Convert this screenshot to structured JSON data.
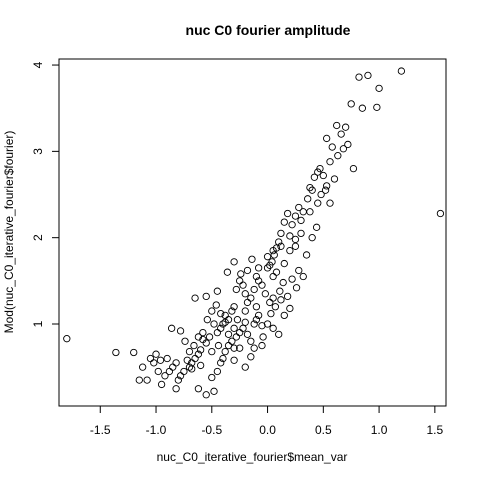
{
  "chart_data": {
    "type": "scatter",
    "title": "nuc C0 fourier amplitude",
    "xlabel": "nuc_C0_iterative_fourier$mean_var",
    "ylabel": "Mod(nuc_C0_iterative_fourier$fourier)",
    "xlim": [
      -1.87,
      1.6
    ],
    "ylim": [
      0.05,
      4.07
    ],
    "xticks": [
      -1.5,
      -1.0,
      -0.5,
      0.0,
      0.5,
      1.0,
      1.5
    ],
    "xtick_labels": [
      "-1.5",
      "-1.0",
      "-0.5",
      "0.0",
      "0.5",
      "1.0",
      "1.5"
    ],
    "yticks": [
      1,
      2,
      3,
      4
    ],
    "ytick_labels": [
      "1",
      "2",
      "3",
      "4"
    ],
    "grid": false,
    "legend": "none",
    "marker": "open-circle",
    "color": "#000000",
    "points": [
      [
        -1.8,
        0.83
      ],
      [
        -1.36,
        0.67
      ],
      [
        -1.2,
        0.67
      ],
      [
        1.55,
        2.28
      ],
      [
        1.2,
        3.93
      ],
      [
        1.0,
        3.73
      ],
      [
        0.9,
        3.88
      ],
      [
        0.82,
        3.86
      ],
      [
        0.85,
        3.5
      ],
      [
        0.98,
        3.51
      ],
      [
        0.75,
        3.55
      ],
      [
        0.62,
        3.3
      ],
      [
        0.7,
        3.28
      ],
      [
        0.66,
        3.2
      ],
      [
        0.72,
        3.08
      ],
      [
        0.68,
        3.03
      ],
      [
        0.63,
        2.95
      ],
      [
        0.58,
        3.05
      ],
      [
        0.53,
        3.15
      ],
      [
        0.56,
        2.88
      ],
      [
        0.5,
        2.72
      ],
      [
        0.47,
        2.8
      ],
      [
        0.45,
        2.76
      ],
      [
        0.42,
        2.7
      ],
      [
        0.53,
        2.6
      ],
      [
        0.48,
        2.5
      ],
      [
        0.4,
        2.55
      ],
      [
        0.36,
        2.45
      ],
      [
        0.38,
        2.58
      ],
      [
        0.77,
        2.8
      ],
      [
        0.56,
        2.4
      ],
      [
        0.32,
        2.3
      ],
      [
        0.28,
        2.35
      ],
      [
        0.25,
        2.25
      ],
      [
        0.3,
        2.2
      ],
      [
        0.22,
        2.15
      ],
      [
        0.2,
        2.02
      ],
      [
        0.18,
        2.28
      ],
      [
        0.15,
        2.18
      ],
      [
        0.12,
        2.05
      ],
      [
        0.1,
        1.95
      ],
      [
        0.08,
        1.88
      ],
      [
        0.06,
        1.8
      ],
      [
        0.04,
        1.72
      ],
      [
        0.02,
        1.68
      ],
      [
        0.0,
        1.65
      ],
      [
        0.05,
        1.55
      ],
      [
        0.08,
        1.6
      ],
      [
        0.15,
        1.7
      ],
      [
        0.2,
        1.85
      ],
      [
        0.25,
        1.9
      ],
      [
        0.14,
        1.48
      ],
      [
        0.11,
        1.38
      ],
      [
        0.05,
        1.3
      ],
      [
        0.02,
        1.25
      ],
      [
        -0.02,
        1.35
      ],
      [
        -0.05,
        1.45
      ],
      [
        -0.08,
        1.5
      ],
      [
        -0.1,
        1.55
      ],
      [
        -0.12,
        1.4
      ],
      [
        -0.15,
        1.3
      ],
      [
        -0.18,
        1.25
      ],
      [
        -0.2,
        1.35
      ],
      [
        -0.22,
        1.45
      ],
      [
        -0.25,
        1.5
      ],
      [
        -0.28,
        1.4
      ],
      [
        -0.3,
        1.2
      ],
      [
        -0.32,
        1.15
      ],
      [
        -0.35,
        1.05
      ],
      [
        -0.38,
        1.1
      ],
      [
        -0.4,
        1.0
      ],
      [
        -0.42,
        0.95
      ],
      [
        -0.45,
        0.9
      ],
      [
        -0.48,
        1.0
      ],
      [
        -0.5,
        1.15
      ],
      [
        -0.52,
        0.85
      ],
      [
        -0.55,
        0.78
      ],
      [
        -0.58,
        0.82
      ],
      [
        -0.6,
        0.7
      ],
      [
        -0.62,
        0.65
      ],
      [
        -0.65,
        0.6
      ],
      [
        -0.68,
        0.55
      ],
      [
        -0.7,
        0.5
      ],
      [
        -0.72,
        0.58
      ],
      [
        -0.75,
        0.45
      ],
      [
        -0.78,
        0.4
      ],
      [
        -0.8,
        0.35
      ],
      [
        -0.82,
        0.55
      ],
      [
        -0.85,
        0.5
      ],
      [
        -0.88,
        0.45
      ],
      [
        -0.9,
        0.6
      ],
      [
        -0.92,
        0.4
      ],
      [
        -0.95,
        0.3
      ],
      [
        -0.98,
        0.45
      ],
      [
        -1.0,
        0.65
      ],
      [
        -1.02,
        0.55
      ],
      [
        -1.05,
        0.6
      ],
      [
        -1.08,
        0.35
      ],
      [
        -1.12,
        0.5
      ],
      [
        -0.82,
        0.25
      ],
      [
        -0.62,
        0.25
      ],
      [
        -0.55,
        0.18
      ],
      [
        -0.48,
        0.22
      ],
      [
        -0.5,
        0.38
      ],
      [
        -0.45,
        0.45
      ],
      [
        -0.42,
        0.55
      ],
      [
        -0.4,
        0.6
      ],
      [
        -0.38,
        0.68
      ],
      [
        -0.35,
        0.75
      ],
      [
        -0.32,
        0.8
      ],
      [
        -0.3,
        0.72
      ],
      [
        -0.28,
        0.85
      ],
      [
        -0.25,
        0.9
      ],
      [
        -0.22,
        0.95
      ],
      [
        -0.2,
        1.02
      ],
      [
        -0.18,
        0.88
      ],
      [
        -0.15,
        0.8
      ],
      [
        -0.12,
        1.0
      ],
      [
        -0.1,
        1.05
      ],
      [
        -0.08,
        1.1
      ],
      [
        -0.05,
        0.98
      ],
      [
        0.0,
        1.0
      ],
      [
        0.03,
        1.12
      ],
      [
        0.07,
        1.2
      ],
      [
        0.12,
        1.28
      ],
      [
        0.18,
        1.32
      ],
      [
        0.22,
        1.52
      ],
      [
        0.28,
        1.62
      ],
      [
        0.1,
        0.88
      ],
      [
        -0.05,
        0.75
      ],
      [
        -0.15,
        0.62
      ],
      [
        -0.25,
        0.72
      ],
      [
        -0.3,
        0.95
      ],
      [
        -0.35,
        0.88
      ],
      [
        -0.38,
        1.02
      ],
      [
        -0.42,
        1.12
      ],
      [
        -0.46,
        1.22
      ],
      [
        -0.54,
        1.05
      ],
      [
        -0.58,
        0.9
      ],
      [
        -0.62,
        0.85
      ],
      [
        -0.66,
        0.75
      ],
      [
        -0.7,
        0.68
      ],
      [
        -0.74,
        0.8
      ],
      [
        -0.78,
        0.92
      ],
      [
        -0.86,
        0.95
      ],
      [
        -0.96,
        0.58
      ],
      [
        -1.15,
        0.35
      ],
      [
        -0.65,
        1.3
      ],
      [
        -0.55,
        1.32
      ],
      [
        -0.45,
        1.38
      ],
      [
        -0.36,
        1.6
      ],
      [
        -0.3,
        1.72
      ],
      [
        -0.24,
        1.58
      ],
      [
        -0.18,
        1.62
      ],
      [
        -0.14,
        1.75
      ],
      [
        -0.08,
        1.65
      ],
      [
        0.0,
        1.78
      ],
      [
        0.05,
        1.85
      ],
      [
        0.12,
        1.9
      ],
      [
        -0.1,
        1.2
      ],
      [
        -0.2,
        1.15
      ],
      [
        -0.27,
        1.05
      ],
      [
        -0.44,
        0.75
      ],
      [
        -0.5,
        0.68
      ],
      [
        -0.6,
        0.52
      ],
      [
        -0.68,
        0.48
      ],
      [
        -0.3,
        0.58
      ],
      [
        -0.2,
        0.5
      ],
      [
        -0.12,
        0.72
      ],
      [
        -0.04,
        0.85
      ],
      [
        0.05,
        0.95
      ],
      [
        0.15,
        1.1
      ],
      [
        0.2,
        1.18
      ],
      [
        0.26,
        1.42
      ],
      [
        0.32,
        1.55
      ],
      [
        0.35,
        1.8
      ],
      [
        0.4,
        2.0
      ],
      [
        0.44,
        2.12
      ],
      [
        0.3,
        2.05
      ],
      [
        0.25,
        1.98
      ],
      [
        0.38,
        2.3
      ],
      [
        0.45,
        2.4
      ],
      [
        0.52,
        2.55
      ],
      [
        0.6,
        2.68
      ]
    ]
  }
}
